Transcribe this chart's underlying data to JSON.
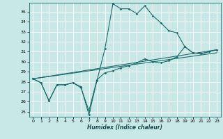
{
  "title": "",
  "xlabel": "Humidex (Indice chaleur)",
  "bg_color": "#c8e8e8",
  "grid_color": "#ffffff",
  "line_color": "#1a6b6b",
  "xlim": [
    -0.5,
    23.5
  ],
  "ylim": [
    24.5,
    35.9
  ],
  "xticks": [
    0,
    1,
    2,
    3,
    4,
    5,
    6,
    7,
    8,
    9,
    10,
    11,
    12,
    13,
    14,
    15,
    16,
    17,
    18,
    19,
    20,
    21,
    22,
    23
  ],
  "yticks": [
    25,
    26,
    27,
    28,
    29,
    30,
    31,
    32,
    33,
    34,
    35
  ],
  "line1_x": [
    0,
    1,
    2,
    3,
    4,
    5,
    6,
    7,
    8,
    9,
    10,
    11,
    12,
    13,
    14,
    15,
    16,
    17,
    18,
    19,
    20,
    21,
    22,
    23
  ],
  "line1_y": [
    28.3,
    27.9,
    26.1,
    27.7,
    27.7,
    27.9,
    27.5,
    24.7,
    28.1,
    31.3,
    35.8,
    35.3,
    35.3,
    34.8,
    35.6,
    34.6,
    33.9,
    33.1,
    32.9,
    31.5,
    30.9,
    30.8,
    31.0,
    31.2
  ],
  "line2_x": [
    0,
    1,
    2,
    3,
    4,
    5,
    6,
    7,
    8,
    9,
    10,
    11,
    12,
    13,
    14,
    15,
    16,
    17,
    18,
    19,
    20,
    21,
    22,
    23
  ],
  "line2_y": [
    28.3,
    27.9,
    26.1,
    27.7,
    27.7,
    27.9,
    27.4,
    25.1,
    28.2,
    28.9,
    29.1,
    29.4,
    29.6,
    29.9,
    30.3,
    30.0,
    29.9,
    30.1,
    30.5,
    31.5,
    30.9,
    30.8,
    31.0,
    31.2
  ],
  "line3_x": [
    0,
    23
  ],
  "line3_y": [
    28.3,
    31.2
  ],
  "line4_x": [
    0,
    23
  ],
  "line4_y": [
    28.3,
    30.9
  ]
}
